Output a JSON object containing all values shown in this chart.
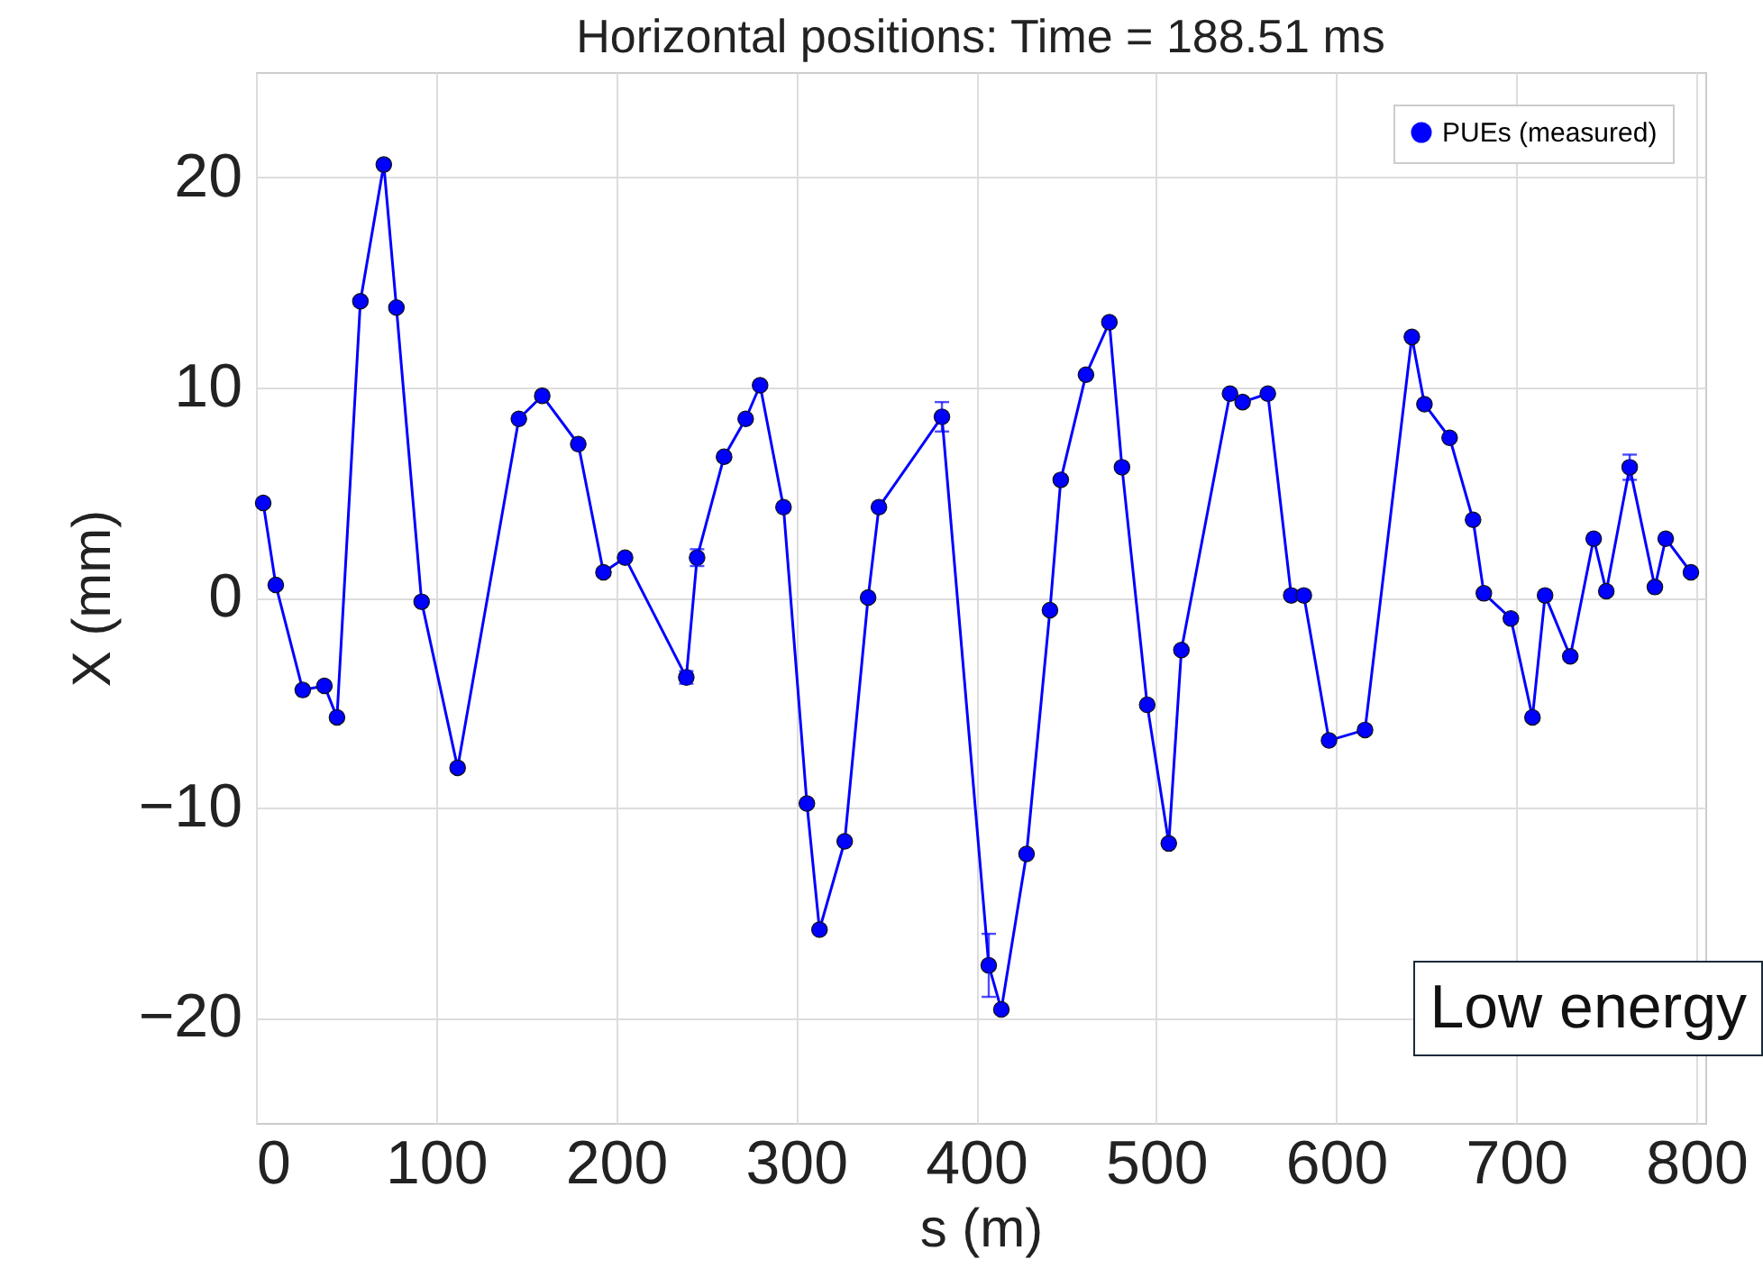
{
  "chart_data": {
    "type": "line",
    "title": "Horizontal positions: Time = 188.51 ms",
    "xlabel": "s (m)",
    "ylabel": "X (mm)",
    "x": [
      4,
      11,
      26,
      38,
      45,
      58,
      71,
      78,
      92,
      112,
      146,
      159,
      179,
      193,
      205,
      239,
      245,
      260,
      272,
      280,
      293,
      306,
      313,
      327,
      340,
      346,
      381,
      407,
      414,
      428,
      441,
      447,
      461,
      474,
      481,
      495,
      507,
      514,
      541,
      548,
      562,
      575,
      582,
      596,
      616,
      642,
      649,
      663,
      676,
      682,
      697,
      709,
      716,
      730,
      743,
      750,
      763,
      777,
      783,
      797
    ],
    "series": [
      {
        "name": "PUEs (measured)",
        "color": "#0000ff",
        "values": [
          4.5,
          0.6,
          -4.4,
          -4.2,
          -5.7,
          14.1,
          20.6,
          13.8,
          -0.2,
          -8.1,
          8.5,
          9.6,
          7.3,
          1.2,
          1.9,
          -3.8,
          1.9,
          6.7,
          8.5,
          10.1,
          4.3,
          -9.8,
          -15.8,
          -11.6,
          0.0,
          4.3,
          8.6,
          -17.5,
          -19.6,
          -12.2,
          -0.6,
          5.6,
          10.6,
          13.1,
          6.2,
          -5.1,
          -11.7,
          -2.5,
          9.7,
          9.3,
          9.7,
          0.1,
          0.1,
          -6.8,
          -6.3,
          12.4,
          9.2,
          7.6,
          3.7,
          0.2,
          -1.0,
          -5.7,
          0.1,
          -2.8,
          2.8,
          0.3,
          6.2,
          0.5,
          2.8,
          1.2
        ],
        "errors": [
          null,
          null,
          null,
          null,
          null,
          null,
          null,
          null,
          null,
          null,
          null,
          null,
          null,
          null,
          null,
          0.3,
          0.4,
          null,
          null,
          null,
          null,
          null,
          null,
          null,
          null,
          null,
          0.7,
          1.5,
          null,
          null,
          null,
          null,
          null,
          null,
          null,
          null,
          null,
          null,
          null,
          null,
          null,
          null,
          null,
          null,
          null,
          null,
          null,
          null,
          null,
          null,
          null,
          null,
          null,
          null,
          null,
          null,
          0.6,
          null,
          null,
          null
        ]
      }
    ],
    "xlim": [
      0,
      805
    ],
    "xticks": [
      0,
      100,
      200,
      300,
      400,
      500,
      600,
      700,
      800
    ],
    "ylim": [
      -25,
      25
    ],
    "yticks": [
      -20,
      -10,
      0,
      10,
      20
    ],
    "grid": true,
    "legend": "top right",
    "marker": "circle",
    "line_style": "solid",
    "annotations": [
      "Low energy"
    ]
  }
}
